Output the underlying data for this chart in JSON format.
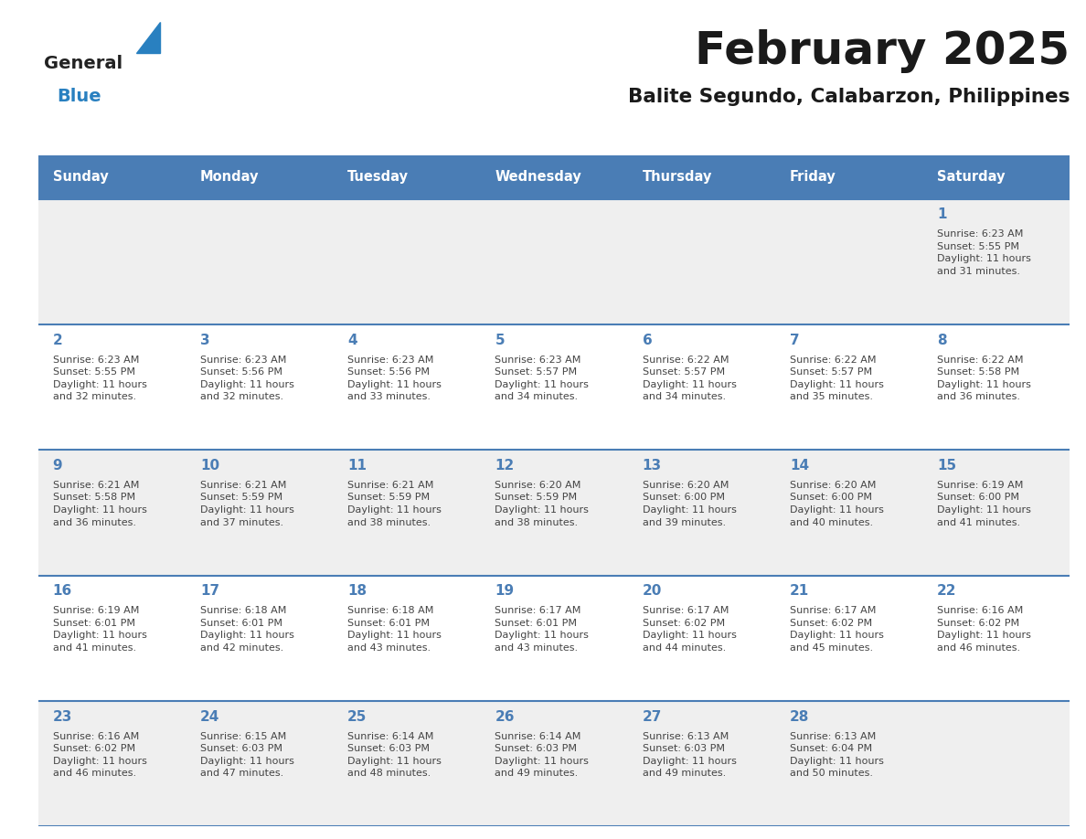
{
  "title": "February 2025",
  "subtitle": "Balite Segundo, Calabarzon, Philippines",
  "header_bg_color": "#4A7DB5",
  "header_text_color": "#FFFFFF",
  "day_names": [
    "Sunday",
    "Monday",
    "Tuesday",
    "Wednesday",
    "Thursday",
    "Friday",
    "Saturday"
  ],
  "row_bg_colors": [
    "#EFEFEF",
    "#FFFFFF",
    "#EFEFEF",
    "#FFFFFF",
    "#EFEFEF"
  ],
  "cell_border_color": "#4A7DB5",
  "day_num_color": "#4A7DB5",
  "info_text_color": "#444444",
  "title_color": "#1a1a1a",
  "subtitle_color": "#1a1a1a",
  "logo_general_color": "#222222",
  "logo_blue_color": "#2980c0",
  "calendar_data": [
    [
      null,
      null,
      null,
      null,
      null,
      null,
      {
        "day": 1,
        "sunrise": "6:23 AM",
        "sunset": "5:55 PM",
        "daylight": "11 hours\nand 31 minutes."
      }
    ],
    [
      {
        "day": 2,
        "sunrise": "6:23 AM",
        "sunset": "5:55 PM",
        "daylight": "11 hours\nand 32 minutes."
      },
      {
        "day": 3,
        "sunrise": "6:23 AM",
        "sunset": "5:56 PM",
        "daylight": "11 hours\nand 32 minutes."
      },
      {
        "day": 4,
        "sunrise": "6:23 AM",
        "sunset": "5:56 PM",
        "daylight": "11 hours\nand 33 minutes."
      },
      {
        "day": 5,
        "sunrise": "6:23 AM",
        "sunset": "5:57 PM",
        "daylight": "11 hours\nand 34 minutes."
      },
      {
        "day": 6,
        "sunrise": "6:22 AM",
        "sunset": "5:57 PM",
        "daylight": "11 hours\nand 34 minutes."
      },
      {
        "day": 7,
        "sunrise": "6:22 AM",
        "sunset": "5:57 PM",
        "daylight": "11 hours\nand 35 minutes."
      },
      {
        "day": 8,
        "sunrise": "6:22 AM",
        "sunset": "5:58 PM",
        "daylight": "11 hours\nand 36 minutes."
      }
    ],
    [
      {
        "day": 9,
        "sunrise": "6:21 AM",
        "sunset": "5:58 PM",
        "daylight": "11 hours\nand 36 minutes."
      },
      {
        "day": 10,
        "sunrise": "6:21 AM",
        "sunset": "5:59 PM",
        "daylight": "11 hours\nand 37 minutes."
      },
      {
        "day": 11,
        "sunrise": "6:21 AM",
        "sunset": "5:59 PM",
        "daylight": "11 hours\nand 38 minutes."
      },
      {
        "day": 12,
        "sunrise": "6:20 AM",
        "sunset": "5:59 PM",
        "daylight": "11 hours\nand 38 minutes."
      },
      {
        "day": 13,
        "sunrise": "6:20 AM",
        "sunset": "6:00 PM",
        "daylight": "11 hours\nand 39 minutes."
      },
      {
        "day": 14,
        "sunrise": "6:20 AM",
        "sunset": "6:00 PM",
        "daylight": "11 hours\nand 40 minutes."
      },
      {
        "day": 15,
        "sunrise": "6:19 AM",
        "sunset": "6:00 PM",
        "daylight": "11 hours\nand 41 minutes."
      }
    ],
    [
      {
        "day": 16,
        "sunrise": "6:19 AM",
        "sunset": "6:01 PM",
        "daylight": "11 hours\nand 41 minutes."
      },
      {
        "day": 17,
        "sunrise": "6:18 AM",
        "sunset": "6:01 PM",
        "daylight": "11 hours\nand 42 minutes."
      },
      {
        "day": 18,
        "sunrise": "6:18 AM",
        "sunset": "6:01 PM",
        "daylight": "11 hours\nand 43 minutes."
      },
      {
        "day": 19,
        "sunrise": "6:17 AM",
        "sunset": "6:01 PM",
        "daylight": "11 hours\nand 43 minutes."
      },
      {
        "day": 20,
        "sunrise": "6:17 AM",
        "sunset": "6:02 PM",
        "daylight": "11 hours\nand 44 minutes."
      },
      {
        "day": 21,
        "sunrise": "6:17 AM",
        "sunset": "6:02 PM",
        "daylight": "11 hours\nand 45 minutes."
      },
      {
        "day": 22,
        "sunrise": "6:16 AM",
        "sunset": "6:02 PM",
        "daylight": "11 hours\nand 46 minutes."
      }
    ],
    [
      {
        "day": 23,
        "sunrise": "6:16 AM",
        "sunset": "6:02 PM",
        "daylight": "11 hours\nand 46 minutes."
      },
      {
        "day": 24,
        "sunrise": "6:15 AM",
        "sunset": "6:03 PM",
        "daylight": "11 hours\nand 47 minutes."
      },
      {
        "day": 25,
        "sunrise": "6:14 AM",
        "sunset": "6:03 PM",
        "daylight": "11 hours\nand 48 minutes."
      },
      {
        "day": 26,
        "sunrise": "6:14 AM",
        "sunset": "6:03 PM",
        "daylight": "11 hours\nand 49 minutes."
      },
      {
        "day": 27,
        "sunrise": "6:13 AM",
        "sunset": "6:03 PM",
        "daylight": "11 hours\nand 49 minutes."
      },
      {
        "day": 28,
        "sunrise": "6:13 AM",
        "sunset": "6:04 PM",
        "daylight": "11 hours\nand 50 minutes."
      },
      null
    ]
  ]
}
